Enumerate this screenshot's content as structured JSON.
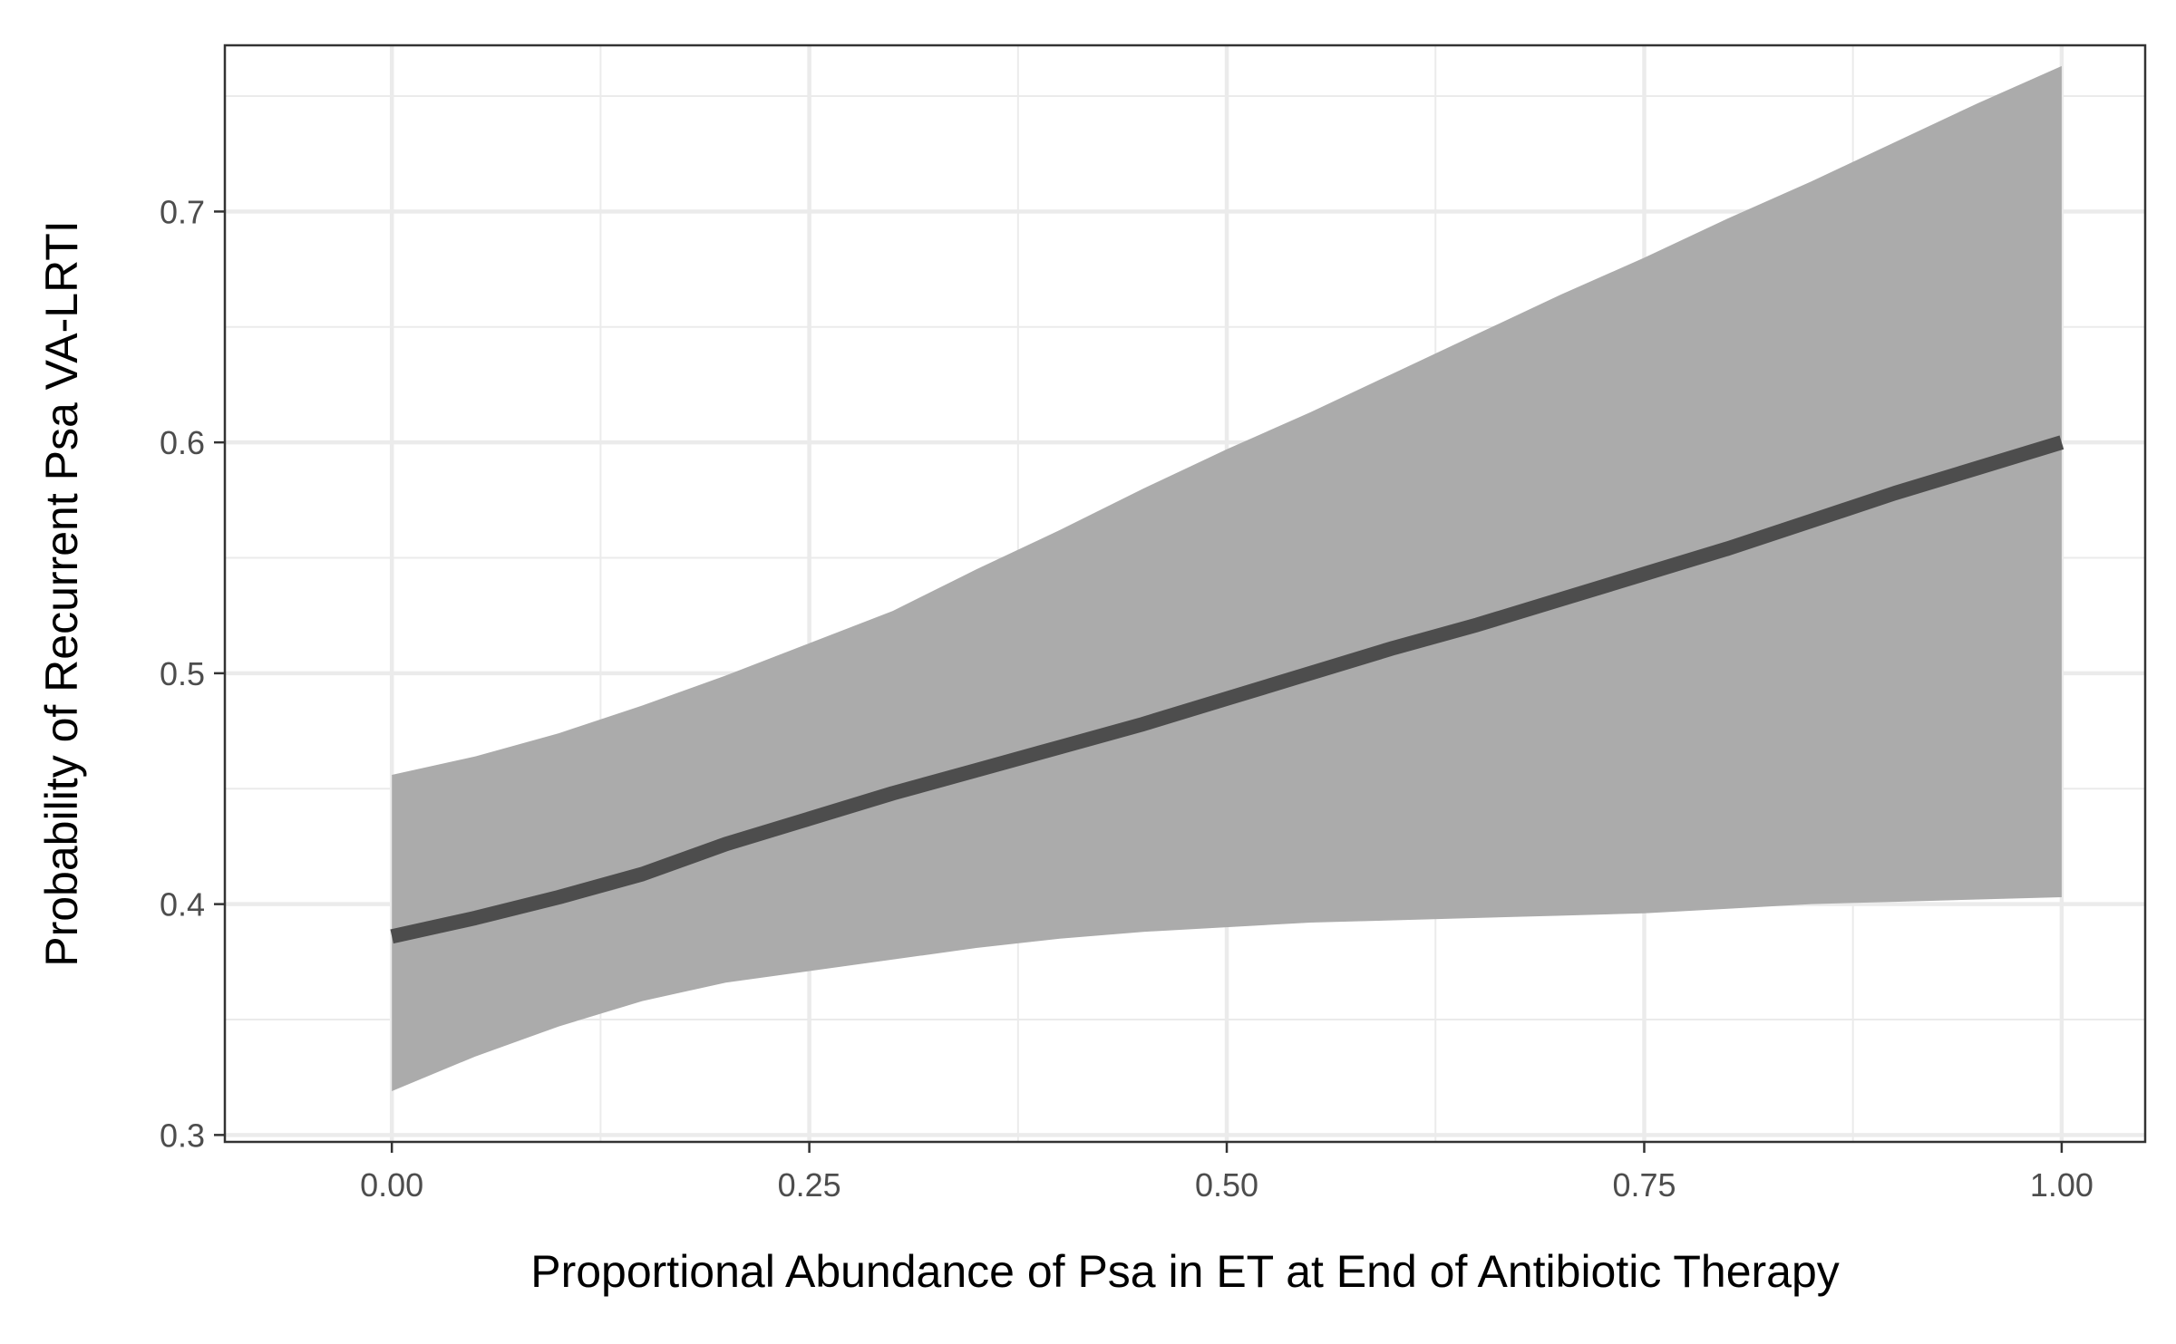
{
  "chart_data": {
    "type": "line",
    "title": "",
    "xlabel": "Proportional Abundance of Psa in ET at End of Antibiotic Therapy",
    "ylabel": "Probability of Recurrent Psa VA-LRTI",
    "xlim": [
      -0.1,
      1.05
    ],
    "ylim": [
      0.297,
      0.772
    ],
    "x_ticks": [
      0.0,
      0.25,
      0.5,
      0.75,
      1.0
    ],
    "x_tick_labels": [
      "0.00",
      "0.25",
      "0.50",
      "0.75",
      "1.00"
    ],
    "y_ticks": [
      0.3,
      0.4,
      0.5,
      0.6,
      0.7
    ],
    "y_tick_labels": [
      "0.3",
      "0.4",
      "0.5",
      "0.6",
      "0.7"
    ],
    "grid": true,
    "legend": "none",
    "series": [
      {
        "x": [
          0.0,
          0.05,
          0.1,
          0.15,
          0.2,
          0.25,
          0.3,
          0.35,
          0.4,
          0.45,
          0.5,
          0.55,
          0.6,
          0.65,
          0.7,
          0.75,
          0.8,
          0.85,
          0.9,
          0.95,
          1.0
        ],
        "y": [
          0.386,
          0.394,
          0.403,
          0.413,
          0.426,
          0.437,
          0.448,
          0.458,
          0.468,
          0.478,
          0.489,
          0.5,
          0.511,
          0.521,
          0.532,
          0.543,
          0.554,
          0.566,
          0.578,
          0.589,
          0.6
        ],
        "lower": [
          0.319,
          0.334,
          0.347,
          0.358,
          0.366,
          0.371,
          0.376,
          0.381,
          0.385,
          0.388,
          0.39,
          0.392,
          0.393,
          0.394,
          0.395,
          0.396,
          0.398,
          0.4,
          0.401,
          0.402,
          0.403
        ],
        "upper": [
          0.456,
          0.464,
          0.474,
          0.486,
          0.499,
          0.513,
          0.527,
          0.545,
          0.562,
          0.58,
          0.597,
          0.613,
          0.63,
          0.647,
          0.664,
          0.68,
          0.697,
          0.713,
          0.73,
          0.747,
          0.763
        ],
        "color": "#4d4d4d",
        "ribbon_color": "#ababab"
      }
    ]
  }
}
